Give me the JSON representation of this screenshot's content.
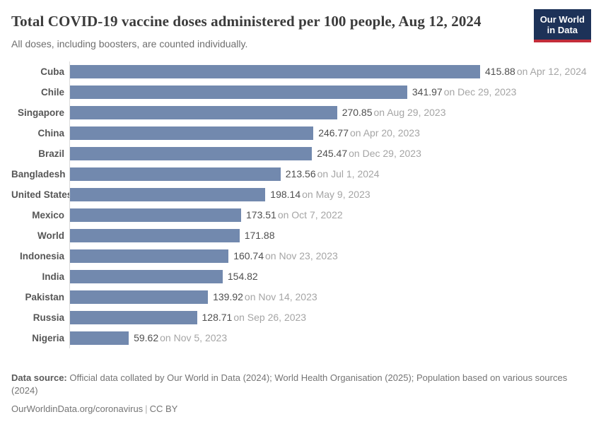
{
  "header": {
    "title": "Total COVID-19 vaccine doses administered per 100 people, Aug 12, 2024",
    "subtitle": "All doses, including boosters, are counted individually.",
    "logo": {
      "line1": "Our World",
      "line2": "in Data"
    }
  },
  "chart_data": {
    "type": "bar",
    "orientation": "horizontal",
    "title": "Total COVID-19 vaccine doses administered per 100 people, Aug 12, 2024",
    "subtitle": "All doses, including boosters, are counted individually.",
    "xlabel": "",
    "ylabel": "",
    "xlim": [
      0,
      415.88
    ],
    "grid": false,
    "legend": false,
    "bar_color": "#7289ae",
    "rows": [
      {
        "label": "Cuba",
        "value": 415.88,
        "value_label": "415.88",
        "date_label": "on Apr 12, 2024"
      },
      {
        "label": "Chile",
        "value": 341.97,
        "value_label": "341.97",
        "date_label": "on Dec 29, 2023"
      },
      {
        "label": "Singapore",
        "value": 270.85,
        "value_label": "270.85",
        "date_label": "on Aug 29, 2023"
      },
      {
        "label": "China",
        "value": 246.77,
        "value_label": "246.77",
        "date_label": "on Apr 20, 2023"
      },
      {
        "label": "Brazil",
        "value": 245.47,
        "value_label": "245.47",
        "date_label": "on Dec 29, 2023"
      },
      {
        "label": "Bangladesh",
        "value": 213.56,
        "value_label": "213.56",
        "date_label": "on Jul 1, 2024"
      },
      {
        "label": "United States",
        "value": 198.14,
        "value_label": "198.14",
        "date_label": "on May 9, 2023"
      },
      {
        "label": "Mexico",
        "value": 173.51,
        "value_label": "173.51",
        "date_label": "on Oct 7, 2022"
      },
      {
        "label": "World",
        "value": 171.88,
        "value_label": "171.88",
        "date_label": ""
      },
      {
        "label": "Indonesia",
        "value": 160.74,
        "value_label": "160.74",
        "date_label": "on Nov 23, 2023"
      },
      {
        "label": "India",
        "value": 154.82,
        "value_label": "154.82",
        "date_label": ""
      },
      {
        "label": "Pakistan",
        "value": 139.92,
        "value_label": "139.92",
        "date_label": "on Nov 14, 2023"
      },
      {
        "label": "Russia",
        "value": 128.71,
        "value_label": "128.71",
        "date_label": "on Sep 26, 2023"
      },
      {
        "label": "Nigeria",
        "value": 59.62,
        "value_label": "59.62",
        "date_label": "on Nov 5, 2023"
      }
    ]
  },
  "footer": {
    "source_label": "Data source:",
    "source_text": "Official data collated by Our World in Data (2024); World Health Organisation (2025); Population based on various sources (2024)",
    "url": "OurWorldinData.org/coronavirus",
    "separator": "|",
    "license": "CC BY"
  },
  "colors": {
    "bar": "#7289ae",
    "axis_line": "#dcdcdc",
    "title_text": "#3b3b3b",
    "subtitle_text": "#6e6e6e",
    "value_text": "#4f4f4f",
    "date_text": "#a5a5a5",
    "footer_text": "#757575",
    "logo_background": "#1d3258",
    "logo_accent": "#c32d3a"
  }
}
